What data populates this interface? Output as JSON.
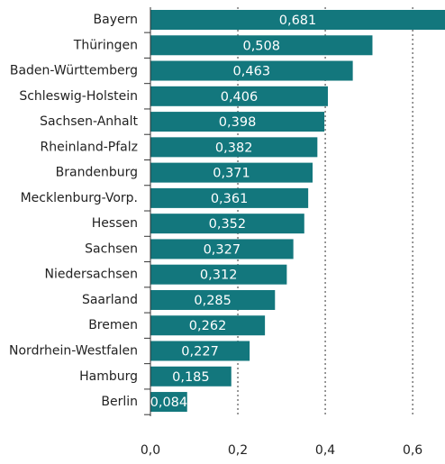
{
  "chart_data": {
    "type": "bar",
    "orientation": "horizontal",
    "categories": [
      "Bayern",
      "Thüringen",
      "Baden-Württemberg",
      "Schleswig-Holstein",
      "Sachsen-Anhalt",
      "Rheinland-Pfalz",
      "Brandenburg",
      "Mecklenburg-Vorp.",
      "Hessen",
      "Sachsen",
      "Niedersachsen",
      "Saarland",
      "Bremen",
      "Nordrhein-Westfalen",
      "Hamburg",
      "Berlin"
    ],
    "values": [
      0.681,
      0.508,
      0.463,
      0.406,
      0.398,
      0.382,
      0.371,
      0.361,
      0.352,
      0.327,
      0.312,
      0.285,
      0.262,
      0.227,
      0.185,
      0.084
    ],
    "value_labels": [
      "0,681",
      "0,508",
      "0,463",
      "0,406",
      "0,398",
      "0,382",
      "0,371",
      "0,361",
      "0,352",
      "0,327",
      "0,312",
      "0,285",
      "0,262",
      "0,227",
      "0,185",
      "0,084"
    ],
    "color": "#13777d",
    "xlim": [
      0,
      0.674
    ],
    "xticks": [
      {
        "value": 0,
        "label": "0,0"
      },
      {
        "value": 0.2,
        "label": "0,2"
      },
      {
        "value": 0.4,
        "label": "0,4"
      },
      {
        "value": 0.6,
        "label": "0,6"
      }
    ],
    "grid": true
  }
}
